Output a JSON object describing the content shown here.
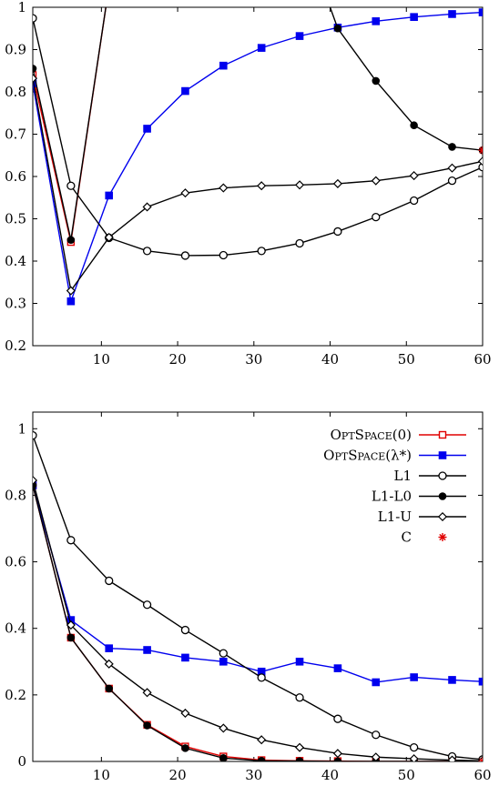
{
  "chart_data": [
    {
      "type": "line",
      "x_ticks": [
        "10",
        "20",
        "30",
        "40",
        "50",
        "60"
      ],
      "y_ticks": [
        "0.2",
        "0.3",
        "0.4",
        "0.5",
        "0.6",
        "0.7",
        "0.8",
        "0.9",
        "1"
      ],
      "xlim": [
        1,
        60
      ],
      "ylim": [
        0.2,
        1.0
      ],
      "grid": false,
      "series": [
        {
          "key": "opt0",
          "color": "#e00000",
          "marker": "open-square",
          "x": [
            1,
            6,
            11
          ],
          "y": [
            0.84,
            0.445,
            1.05
          ]
        },
        {
          "key": "optL",
          "color": "#0000ee",
          "marker": "filled-square",
          "x": [
            1,
            6,
            11,
            16,
            21,
            26,
            31,
            36,
            41,
            46,
            51,
            56,
            60
          ],
          "y": [
            0.82,
            0.305,
            0.555,
            0.713,
            0.802,
            0.862,
            0.904,
            0.932,
            0.952,
            0.967,
            0.977,
            0.984,
            0.988
          ]
        },
        {
          "key": "l1",
          "color": "#000000",
          "marker": "open-circle",
          "x": [
            1,
            6,
            11,
            16,
            21,
            26,
            31,
            36,
            41,
            46,
            51,
            56,
            60
          ],
          "y": [
            0.974,
            0.578,
            0.455,
            0.424,
            0.413,
            0.414,
            0.424,
            0.442,
            0.47,
            0.504,
            0.543,
            0.59,
            0.622
          ]
        },
        {
          "key": "l1l0a",
          "color": "#000000",
          "marker": "filled-circle",
          "x": [
            1,
            6,
            11
          ],
          "y": [
            0.855,
            0.45,
            1.05
          ]
        },
        {
          "key": "l1l0b",
          "color": "#000000",
          "marker": "filled-circle",
          "x": [
            39,
            41,
            46,
            51,
            56,
            60
          ],
          "y": [
            1.05,
            0.95,
            0.826,
            0.721,
            0.67,
            0.662
          ]
        },
        {
          "key": "l1u",
          "color": "#000000",
          "marker": "open-diamond",
          "x": [
            1,
            6,
            11,
            16,
            21,
            26,
            31,
            36,
            41,
            46,
            51,
            56,
            60
          ],
          "y": [
            0.832,
            0.33,
            0.456,
            0.528,
            0.561,
            0.573,
            0.578,
            0.58,
            0.583,
            0.59,
            0.602,
            0.62,
            0.636
          ]
        },
        {
          "key": "c",
          "color": "#e00000",
          "marker": "star",
          "x": [
            60
          ],
          "y": [
            0.662
          ]
        }
      ]
    },
    {
      "type": "line",
      "x_ticks": [
        "10",
        "20",
        "30",
        "40",
        "50",
        "60"
      ],
      "y_ticks": [
        "0",
        "0.2",
        "0.4",
        "0.6",
        "0.8",
        "1"
      ],
      "xlim": [
        1,
        60
      ],
      "ylim": [
        0,
        1.05
      ],
      "grid": false,
      "legend_position": "top-right",
      "series": [
        {
          "key": "opt0",
          "name_parts": [
            "O",
            "PT",
            "S",
            "PACE",
            "(0)"
          ],
          "color": "#e00000",
          "marker": "open-square",
          "x": [
            1,
            6,
            11,
            16,
            21,
            26,
            31,
            36,
            41,
            46,
            51,
            56,
            60
          ],
          "y": [
            0.83,
            0.372,
            0.219,
            0.11,
            0.045,
            0.015,
            0.004,
            0.002,
            0.001,
            0.0,
            0.0,
            0.0,
            0.0
          ]
        },
        {
          "key": "optL",
          "name_parts": [
            "O",
            "PT",
            "S",
            "PACE",
            "(λ*)"
          ],
          "color": "#0000ee",
          "marker": "filled-square",
          "x": [
            1,
            6,
            11,
            16,
            21,
            26,
            31,
            36,
            41,
            46,
            51,
            56,
            60
          ],
          "y": [
            0.83,
            0.425,
            0.34,
            0.335,
            0.312,
            0.3,
            0.27,
            0.3,
            0.28,
            0.238,
            0.253,
            0.245,
            0.24
          ]
        },
        {
          "key": "l1",
          "name": "L1",
          "color": "#000000",
          "marker": "open-circle",
          "x": [
            1,
            6,
            11,
            16,
            21,
            26,
            31,
            36,
            41,
            46,
            51,
            56,
            60
          ],
          "y": [
            0.98,
            0.665,
            0.543,
            0.471,
            0.395,
            0.325,
            0.252,
            0.192,
            0.128,
            0.08,
            0.042,
            0.015,
            0.006
          ]
        },
        {
          "key": "l1l0",
          "name": "L1-L0",
          "color": "#000000",
          "marker": "filled-circle",
          "x": [
            1,
            6,
            11,
            16,
            21,
            26,
            31,
            36,
            41,
            46,
            51,
            56,
            60
          ],
          "y": [
            0.83,
            0.372,
            0.219,
            0.108,
            0.04,
            0.01,
            0.002,
            0.001,
            0.0,
            0.0,
            0.0,
            0.0,
            0.0
          ]
        },
        {
          "key": "l1u",
          "name": "L1-U",
          "color": "#000000",
          "marker": "open-diamond",
          "x": [
            1,
            6,
            11,
            16,
            21,
            26,
            31,
            36,
            41,
            46,
            51,
            56,
            60
          ],
          "y": [
            0.845,
            0.41,
            0.293,
            0.207,
            0.145,
            0.1,
            0.065,
            0.042,
            0.024,
            0.013,
            0.008,
            0.004,
            0.002
          ]
        },
        {
          "key": "c",
          "name": "C",
          "color": "#e00000",
          "marker": "star",
          "x": [
            60
          ],
          "y": [
            0.0
          ]
        }
      ]
    }
  ]
}
